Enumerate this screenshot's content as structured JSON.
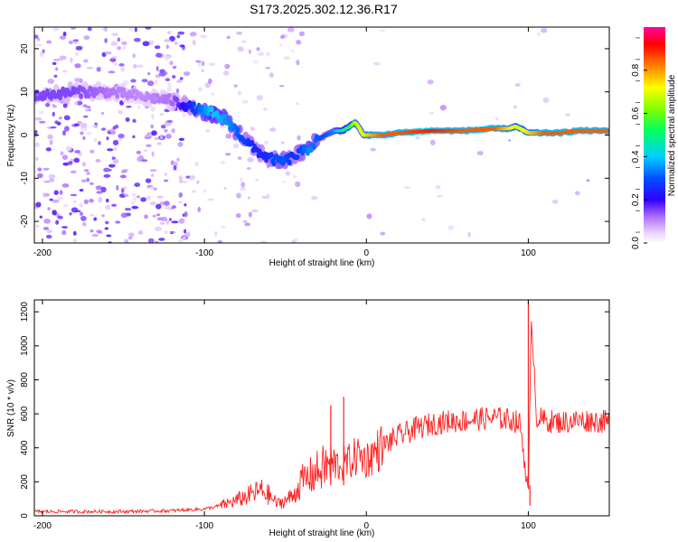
{
  "title": "S173.2025.302.12.36.R17",
  "colorbar": {
    "label": "Normalized spectral amplitude",
    "ticks": [
      "0.0",
      "0.2",
      "0.4",
      "0.6",
      "0.8"
    ],
    "tick_values": [
      0.0,
      0.2,
      0.4,
      0.6,
      0.8
    ],
    "range": [
      0,
      1
    ],
    "colors": [
      "#ffffff",
      "#c080ff",
      "#6000c0",
      "#0000ff",
      "#00d0ff",
      "#00ff60",
      "#ffff00",
      "#ff8000",
      "#ff0000",
      "#ff00a0"
    ]
  },
  "chart_data": [
    {
      "type": "heatmap",
      "name": "spectrogram",
      "xlabel": "Height of straight line (km)",
      "ylabel": "Frequency (Hz)",
      "xlim": [
        -205,
        150
      ],
      "ylim": [
        -25,
        25
      ],
      "xticks": [
        -200,
        -100,
        0,
        100
      ],
      "xtick_labels": [
        "-200",
        "-100",
        "0",
        "100"
      ],
      "yticks": [
        -20,
        -10,
        0,
        10,
        20
      ],
      "ytick_labels": [
        "-20",
        "-10",
        "0",
        "10",
        "20"
      ],
      "ridge": {
        "x": [
          -205,
          -180,
          -160,
          -140,
          -120,
          -105,
          -95,
          -85,
          -78,
          -70,
          -62,
          -55,
          -50,
          -45,
          -40,
          -35,
          -30,
          -25,
          -20,
          -15,
          -10,
          -7,
          -5,
          -2,
          0,
          10,
          20,
          40,
          60,
          80,
          88,
          92,
          95,
          100,
          110,
          120,
          130,
          150
        ],
        "y": [
          9,
          10,
          10,
          9,
          8,
          6,
          5,
          3,
          0,
          -3,
          -5,
          -6,
          -6,
          -5,
          -4,
          -3,
          -1,
          0,
          1,
          1,
          2,
          3,
          2,
          0,
          0,
          0,
          0.5,
          1,
          1,
          1.5,
          1.5,
          2,
          1.5,
          0.5,
          0.5,
          0.5,
          1,
          1
        ],
        "amplitude": [
          0.15,
          0.15,
          0.12,
          0.1,
          0.12,
          0.3,
          0.4,
          0.35,
          0.3,
          0.25,
          0.25,
          0.3,
          0.3,
          0.25,
          0.3,
          0.35,
          0.3,
          0.3,
          0.35,
          0.45,
          0.55,
          0.65,
          0.7,
          0.7,
          0.75,
          0.85,
          0.85,
          0.9,
          0.85,
          0.85,
          0.75,
          0.7,
          0.7,
          0.75,
          0.85,
          0.85,
          0.85,
          0.85
        ]
      }
    },
    {
      "type": "line",
      "name": "snr",
      "xlabel": "Height of straight line (km)",
      "ylabel": "SNR (10 * v/v)",
      "xlim": [
        -205,
        150
      ],
      "ylim": [
        0,
        1270
      ],
      "xticks": [
        -200,
        -100,
        0,
        100
      ],
      "xtick_labels": [
        "-200",
        "-100",
        "0",
        "100"
      ],
      "yticks": [
        0,
        200,
        400,
        600,
        800,
        1000,
        1200
      ],
      "ytick_labels": [
        "0",
        "200",
        "400",
        "600",
        "800",
        "1000",
        "1200"
      ],
      "color": "#ff2020",
      "series": [
        {
          "name": "SNR",
          "x": [
            -205,
            -180,
            -150,
            -120,
            -100,
            -90,
            -80,
            -75,
            -70,
            -65,
            -60,
            -55,
            -50,
            -45,
            -40,
            -35,
            -30,
            -25,
            -20,
            -15,
            -10,
            -5,
            0,
            5,
            10,
            15,
            20,
            30,
            40,
            50,
            60,
            70,
            80,
            90,
            95,
            98,
            100,
            102,
            105,
            110,
            120,
            130,
            140,
            150
          ],
          "y": [
            25,
            25,
            25,
            30,
            40,
            60,
            90,
            110,
            130,
            150,
            120,
            70,
            90,
            120,
            200,
            230,
            260,
            290,
            300,
            300,
            320,
            360,
            330,
            370,
            410,
            440,
            470,
            510,
            540,
            555,
            560,
            570,
            575,
            565,
            540,
            300,
            100,
            1200,
            580,
            560,
            550,
            560,
            560,
            550
          ]
        }
      ],
      "spikes": [
        {
          "x": -22,
          "y": 650
        },
        {
          "x": -14,
          "y": 700
        },
        {
          "x": 100,
          "y": 1270
        },
        {
          "x": 101,
          "y": 60
        }
      ]
    }
  ]
}
